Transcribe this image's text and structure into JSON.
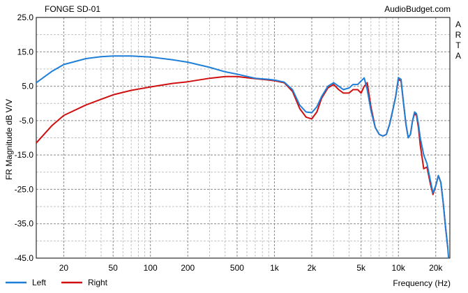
{
  "chart_data": {
    "type": "line",
    "title": "FONGE SD-01",
    "source": "AudioBudget.com",
    "side_label": "ARTA",
    "xlabel": "Frequency (Hz)",
    "ylabel": "FR Magnitude dB V/V",
    "x_scale": "log",
    "xlim": [
      12,
      26000
    ],
    "ylim": [
      -45,
      25
    ],
    "grid": true,
    "legend_position": "bottom-left",
    "x_ticks": [
      {
        "value": 20,
        "label": "20"
      },
      {
        "value": 50,
        "label": "50"
      },
      {
        "value": 100,
        "label": "100"
      },
      {
        "value": 200,
        "label": "200"
      },
      {
        "value": 500,
        "label": "500"
      },
      {
        "value": 1000,
        "label": "1k"
      },
      {
        "value": 2000,
        "label": "2k"
      },
      {
        "value": 5000,
        "label": "5k"
      },
      {
        "value": 10000,
        "label": "10k"
      },
      {
        "value": 20000,
        "label": "20k"
      }
    ],
    "y_ticks": [
      {
        "value": 25,
        "label": "25.0"
      },
      {
        "value": 15,
        "label": "15.0"
      },
      {
        "value": 5,
        "label": "5.0"
      },
      {
        "value": -5,
        "label": "-5.0"
      },
      {
        "value": -15,
        "label": "-15.0"
      },
      {
        "value": -25,
        "label": "-25.0"
      },
      {
        "value": -35,
        "label": "-35.0"
      },
      {
        "value": -45,
        "label": "-45.0"
      }
    ],
    "series": [
      {
        "name": "Left",
        "color": "#1e7fd8",
        "x": [
          12,
          16,
          20,
          30,
          40,
          50,
          70,
          100,
          150,
          200,
          300,
          400,
          500,
          700,
          900,
          1000,
          1200,
          1400,
          1600,
          1800,
          2000,
          2200,
          2400,
          2700,
          3000,
          3300,
          3600,
          4000,
          4300,
          4700,
          5000,
          5300,
          5600,
          6000,
          6500,
          7000,
          7500,
          8000,
          8500,
          9000,
          9500,
          10000,
          10500,
          11000,
          11500,
          12000,
          12500,
          13000,
          13500,
          14000,
          14500,
          15000,
          16000,
          17000,
          18000,
          19000,
          20000,
          21000,
          22000,
          23000,
          24000,
          25000,
          25500
        ],
        "y": [
          6,
          9.3,
          11.3,
          13,
          13.6,
          13.8,
          13.8,
          13.5,
          12.7,
          12,
          10.5,
          9.2,
          8.5,
          7.3,
          7.0,
          6.8,
          6.2,
          4.0,
          -0.5,
          -2.5,
          -2.7,
          -1.0,
          2.0,
          5.0,
          6.0,
          5.0,
          4.0,
          4.5,
          5.5,
          5.5,
          6.5,
          7.4,
          4.0,
          -2.0,
          -7.0,
          -9.0,
          -9.5,
          -9.0,
          -6.0,
          -2.0,
          2.0,
          7.5,
          7.0,
          0.0,
          -6.0,
          -10.0,
          -9.0,
          -5.0,
          -2.5,
          -3.0,
          -6.0,
          -10.0,
          -15.0,
          -17.5,
          -22.0,
          -26.0,
          -24.0,
          -21.0,
          -23.0,
          -29.0,
          -36.0,
          -42.0,
          -46.0
        ]
      },
      {
        "name": "Right",
        "color": "#d01010",
        "x": [
          12,
          16,
          20,
          30,
          40,
          50,
          70,
          100,
          150,
          200,
          300,
          400,
          500,
          700,
          900,
          1000,
          1200,
          1400,
          1600,
          1800,
          2000,
          2200,
          2400,
          2700,
          3000,
          3300,
          3600,
          4000,
          4300,
          4700,
          5000,
          5300,
          5600,
          6000,
          6500,
          7000,
          7500,
          8000,
          8500,
          9000,
          9500,
          10000,
          10500,
          11000,
          11500,
          12000,
          12500,
          13000,
          13500,
          14000,
          14500,
          15000,
          16000,
          17000,
          18000,
          19000,
          20000,
          21000,
          22000,
          23000,
          24000,
          25000
        ],
        "y": [
          -11.5,
          -6.5,
          -3.5,
          -0.5,
          1.2,
          2.5,
          3.8,
          4.8,
          5.8,
          6.3,
          7.3,
          7.8,
          7.8,
          7.2,
          6.8,
          6.6,
          6.0,
          3.5,
          -1.5,
          -4.0,
          -4.5,
          -2.5,
          1.5,
          4.5,
          5.5,
          4.0,
          3.0,
          3.0,
          4.0,
          4.0,
          3.0,
          5.0,
          6.0,
          -1.0,
          -7.0,
          -9.0,
          -9.5,
          -9.0,
          -6.0,
          -2.0,
          2.0,
          7.0,
          6.5,
          0.0,
          -6.0,
          -10.0,
          -9.0,
          -5.0,
          -3.0,
          -3.5,
          -7.0,
          -12.0,
          -19.0,
          -18.5,
          -23.0,
          -26.5,
          -24.0,
          -21.0,
          -23.0,
          -29.0,
          -36.0,
          -42.0
        ]
      }
    ]
  }
}
